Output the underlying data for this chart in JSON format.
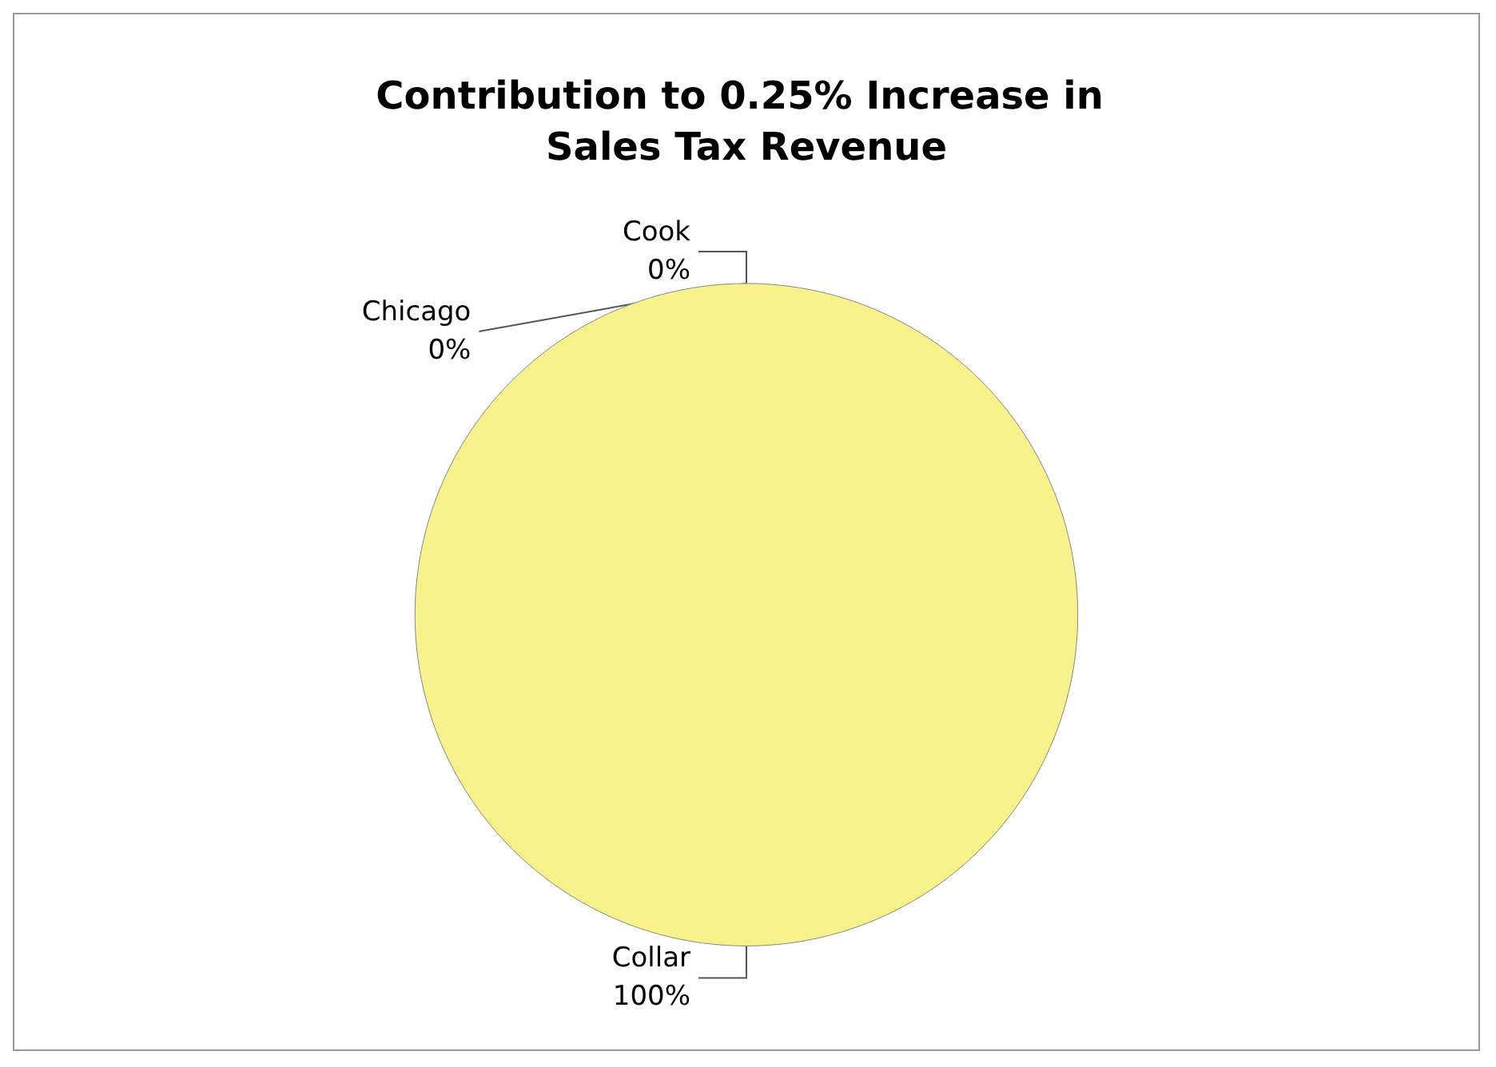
{
  "chart_data": {
    "type": "pie",
    "title": "Contribution to 0.25% Increase in Sales Tax Revenue",
    "categories": [
      "Cook",
      "Chicago",
      "Collar"
    ],
    "values": [
      0,
      0,
      100
    ],
    "value_labels": [
      "0%",
      "0%",
      "100%"
    ],
    "colors": [
      "#993366",
      "#9999ff",
      "#f7f38a"
    ],
    "legend": false
  }
}
